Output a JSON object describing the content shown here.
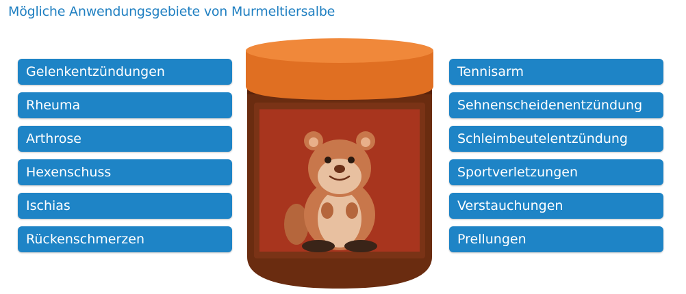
{
  "title": "Mögliche Anwendungsgebiete von Murmeltiersalbe",
  "left_items": [
    "Gelenkentzündungen",
    "Rheuma",
    "Arthrose",
    "Hexenschuss",
    "Ischias",
    "Rückenschmerzen"
  ],
  "right_items": [
    "Tennisarm",
    "Sehnenscheidenentzündung",
    "Schleimbeutelentzündung",
    "Sportverletzungen",
    "Verstauchungen",
    "Prellungen"
  ],
  "colors": {
    "title": "#1f7fc1",
    "pill": "#1e84c6",
    "lid": "#e87c2e",
    "jar": "#6a2c10",
    "label": "#a8351e",
    "marmot": "#c8774b"
  },
  "illustration": "jar-with-marmot-icon"
}
